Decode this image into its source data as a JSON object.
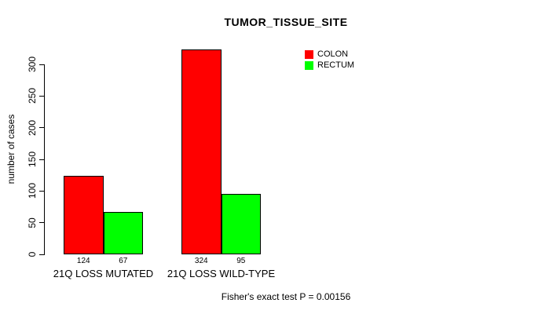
{
  "chart_data": {
    "type": "bar",
    "title": "TUMOR_TISSUE_SITE",
    "xlabel": "",
    "ylabel": "number of cases",
    "categories": [
      "21Q LOSS MUTATED",
      "21Q LOSS WILD-TYPE"
    ],
    "series": [
      {
        "name": "COLON",
        "color": "#ff0000",
        "values": [
          124,
          324
        ]
      },
      {
        "name": "RECTUM",
        "color": "#00ff00",
        "values": [
          67,
          95
        ]
      }
    ],
    "bar_value_labels": [
      [
        "124",
        "67"
      ],
      [
        "324",
        "95"
      ]
    ],
    "y_ticks": [
      0,
      50,
      100,
      150,
      200,
      250,
      300
    ],
    "ylim": [
      0,
      300
    ],
    "grid": false,
    "legend_position": "top-right",
    "annotation": "Fisher's exact test P = 0.00156",
    "bar_border_color": "#000000",
    "background_color": "#ffffff"
  }
}
